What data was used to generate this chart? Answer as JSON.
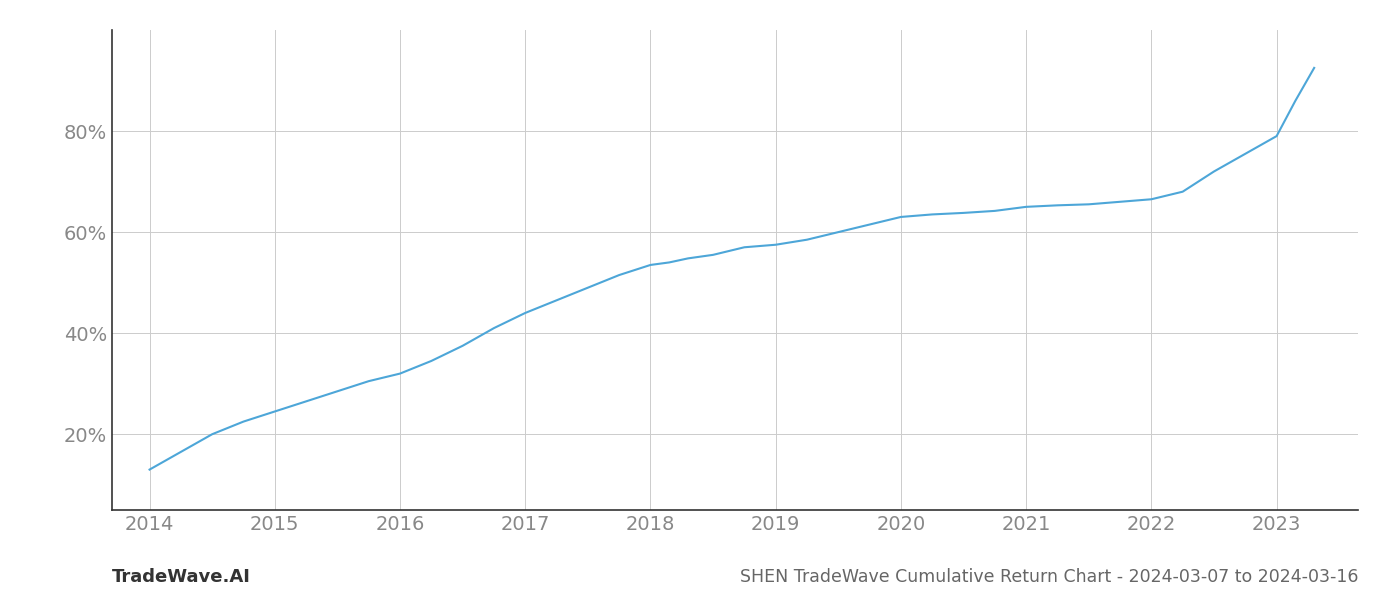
{
  "x_values": [
    2014.0,
    2014.25,
    2014.5,
    2014.75,
    2015.0,
    2015.25,
    2015.5,
    2015.75,
    2016.0,
    2016.25,
    2016.5,
    2016.75,
    2017.0,
    2017.25,
    2017.5,
    2017.75,
    2018.0,
    2018.15,
    2018.3,
    2018.5,
    2018.75,
    2019.0,
    2019.25,
    2019.5,
    2019.75,
    2020.0,
    2020.25,
    2020.5,
    2020.75,
    2021.0,
    2021.25,
    2021.5,
    2021.75,
    2022.0,
    2022.25,
    2022.5,
    2022.75,
    2023.0,
    2023.15,
    2023.3
  ],
  "y_values": [
    13.0,
    16.5,
    20.0,
    22.5,
    24.5,
    26.5,
    28.5,
    30.5,
    32.0,
    34.5,
    37.5,
    41.0,
    44.0,
    46.5,
    49.0,
    51.5,
    53.5,
    54.0,
    54.8,
    55.5,
    57.0,
    57.5,
    58.5,
    60.0,
    61.5,
    63.0,
    63.5,
    63.8,
    64.2,
    65.0,
    65.3,
    65.5,
    66.0,
    66.5,
    68.0,
    72.0,
    75.5,
    79.0,
    86.0,
    92.5
  ],
  "line_color": "#4da6d8",
  "line_width": 1.5,
  "background_color": "#ffffff",
  "grid_color": "#cccccc",
  "title": "SHEN TradeWave Cumulative Return Chart - 2024-03-07 to 2024-03-16",
  "watermark": "TradeWave.AI",
  "x_ticks": [
    2014,
    2015,
    2016,
    2017,
    2018,
    2019,
    2020,
    2021,
    2022,
    2023
  ],
  "y_ticks": [
    20,
    40,
    60,
    80
  ],
  "xlim": [
    2013.7,
    2023.65
  ],
  "ylim": [
    5,
    100
  ],
  "tick_fontsize": 14,
  "title_fontsize": 12.5,
  "watermark_fontsize": 13
}
